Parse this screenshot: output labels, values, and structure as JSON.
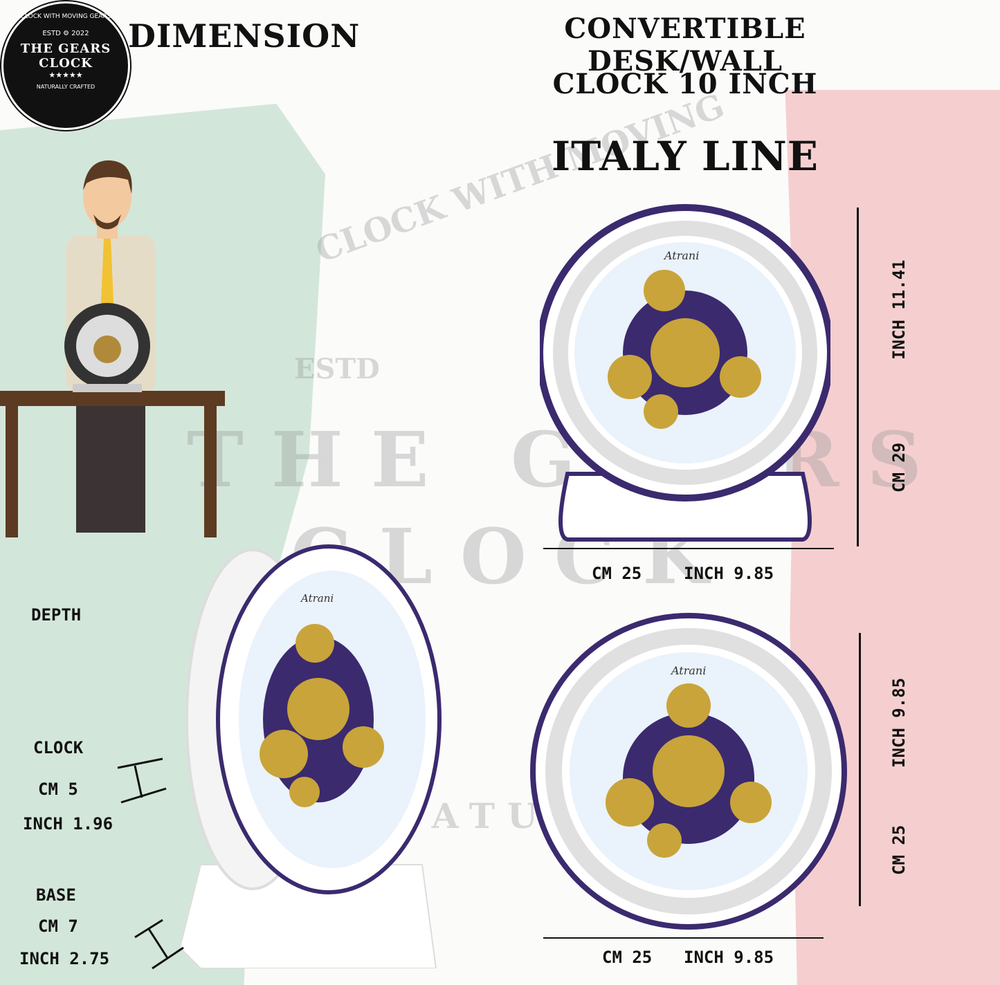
{
  "logo": {
    "arc_top": "CLOCK WITH MOVING GEARS",
    "estd": "ESTD",
    "year": "2022",
    "name_line1": "THE GEARS",
    "name_line2": "CLOCK",
    "stars": "★★★★★",
    "arc_bottom": "NATURALLY CRAFTED"
  },
  "header": {
    "dimension": "DIMENSION",
    "title_line1": "CONVERTIBLE DESK/WALL",
    "title_line2": "CLOCK 10 INCH",
    "subtitle": "ITALY LINE"
  },
  "watermark": {
    "arc": "CLOCK WITH MOVING",
    "estd": "ESTD",
    "name": "THE GEARS",
    "clock": "CLOCK",
    "crafted": "NATURALLY"
  },
  "top_clock": {
    "brand": "Atrani",
    "height_inch": "INCH 11.41",
    "height_cm": "CM 29",
    "width_cm": "CM 25",
    "width_inch": "INCH 9.85"
  },
  "bottom_clock": {
    "brand": "Atrani",
    "height_inch": "INCH 9.85",
    "height_cm": "CM 25",
    "width_cm": "CM 25",
    "width_inch": "INCH 9.85"
  },
  "depth": {
    "title": "DEPTH",
    "clock_label": "CLOCK",
    "clock_cm": "CM 5",
    "clock_inch": "INCH 1.96",
    "base_label": "BASE",
    "base_cm": "CM 7",
    "base_inch": "INCH 2.75"
  },
  "colors": {
    "green": "#d3e6da",
    "pink": "#f5cfcf",
    "gold": "#c9a43a",
    "purple": "#3b2a6e"
  }
}
